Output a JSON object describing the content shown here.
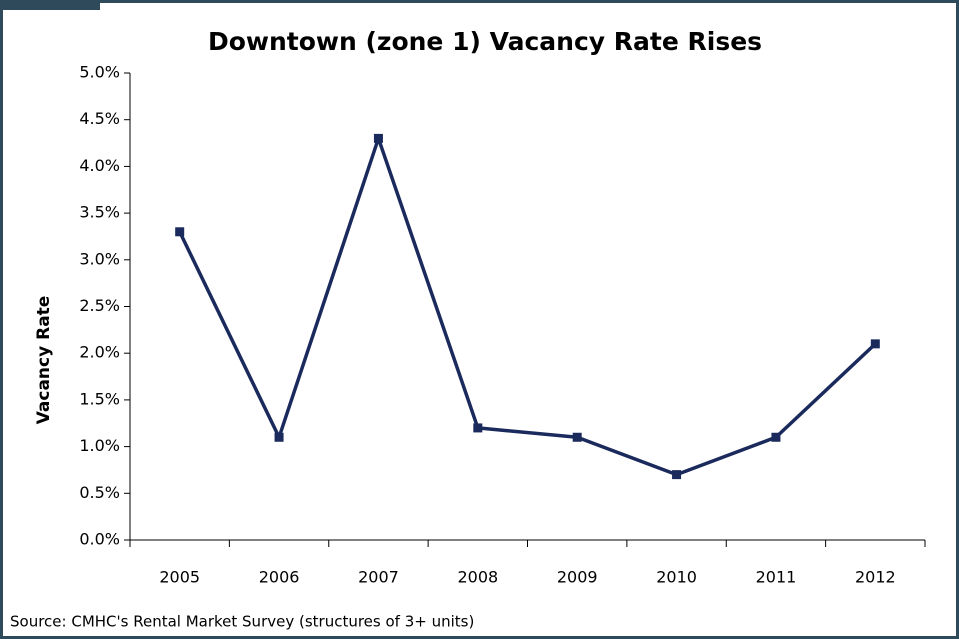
{
  "chart_data": {
    "type": "line",
    "title": "Downtown (zone 1) Vacancy Rate Rises",
    "y_label": "Vacancy Rate",
    "source": "Source: CMHC's Rental Market Survey (structures of 3+ units)",
    "categories": [
      "2005",
      "2006",
      "2007",
      "2008",
      "2009",
      "2010",
      "2011",
      "2012"
    ],
    "series": [
      {
        "name": "Vacancy Rate",
        "color": "#1b2a5c",
        "values": [
          3.3,
          1.1,
          4.3,
          1.2,
          1.1,
          0.7,
          1.1,
          2.1
        ]
      }
    ],
    "ylim": [
      0,
      5
    ],
    "yticks": [
      {
        "value": 0,
        "label": "0.0%"
      },
      {
        "value": 0.5,
        "label": "0.5%"
      },
      {
        "value": 1,
        "label": "1.0%"
      },
      {
        "value": 1.5,
        "label": "1.5%"
      },
      {
        "value": 2,
        "label": "2.0%"
      },
      {
        "value": 2.5,
        "label": "2.5%"
      },
      {
        "value": 3,
        "label": "3.0%"
      },
      {
        "value": 3.5,
        "label": "3.5%"
      },
      {
        "value": 4,
        "label": "4.0%"
      },
      {
        "value": 4.5,
        "label": "4.5%"
      },
      {
        "value": 5,
        "label": "5.0%"
      }
    ],
    "grid": false
  }
}
